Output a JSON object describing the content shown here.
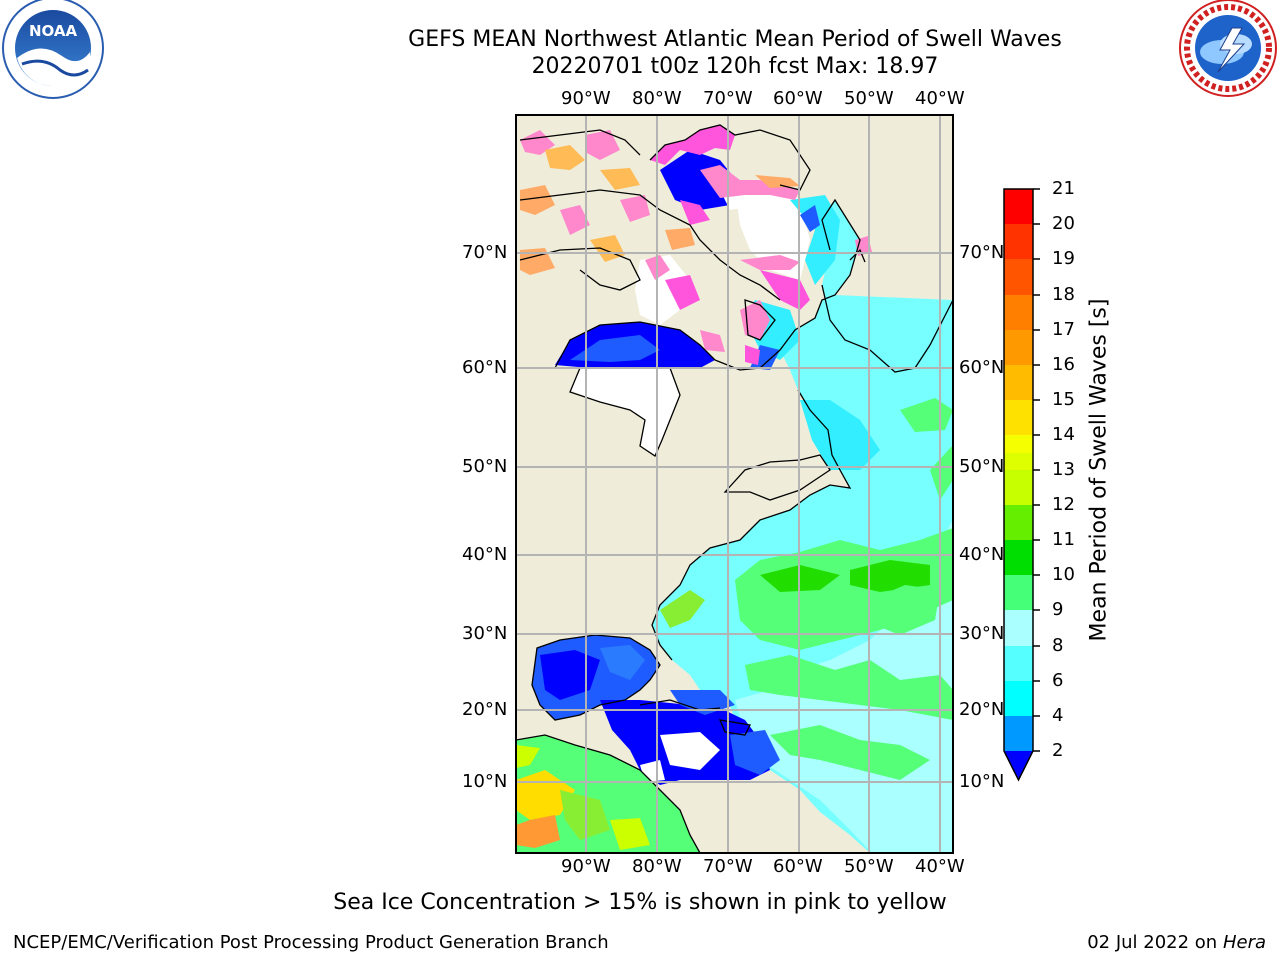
{
  "title": {
    "line1": "GEFS MEAN Northwest Atlantic Mean Period of Swell Waves",
    "line2": "20220701 t00z 120h fcst   Max: 18.97"
  },
  "map": {
    "lon_labels": [
      "90°W",
      "80°W",
      "70°W",
      "60°W",
      "50°W",
      "40°W"
    ],
    "lat_labels": [
      "70°N",
      "60°N",
      "50°N",
      "40°N",
      "30°N",
      "20°N",
      "10°N"
    ],
    "colors": {
      "land": "#efecd9",
      "ice_free_white": "#ffffff",
      "grid": "#b4b4b4"
    }
  },
  "colorbar": {
    "label": "Mean Period of Swell Waves [s]",
    "ticks": [
      "21",
      "20",
      "19",
      "18",
      "17",
      "16",
      "15",
      "14",
      "13",
      "12",
      "11",
      "10",
      "9",
      "8",
      "6",
      "4",
      "2"
    ],
    "colors_top_to_bottom": [
      "#ff0000",
      "#ff3300",
      "#ff5500",
      "#ff7f00",
      "#ff9900",
      "#ffbb00",
      "#ffe100",
      "#f5ff00",
      "#ddff00",
      "#c8ff00",
      "#99ff00",
      "#33dd00",
      "#00ee00",
      "#44ff77",
      "#aaffff",
      "#55ffff",
      "#00ffff",
      "#00ccff",
      "#0077ff"
    ],
    "extend_color": "#0000ff"
  },
  "note": "Sea Ice Concentration > 15% is shown in pink to yellow",
  "footer": {
    "left": "NCEP/EMC/Verification Post Processing Product Generation Branch",
    "right_date": "02 Jul 2022 on ",
    "right_host": "Hera"
  },
  "logos": {
    "noaa": "NOAA",
    "nws": "NATIONAL WEATHER SERVICE"
  }
}
